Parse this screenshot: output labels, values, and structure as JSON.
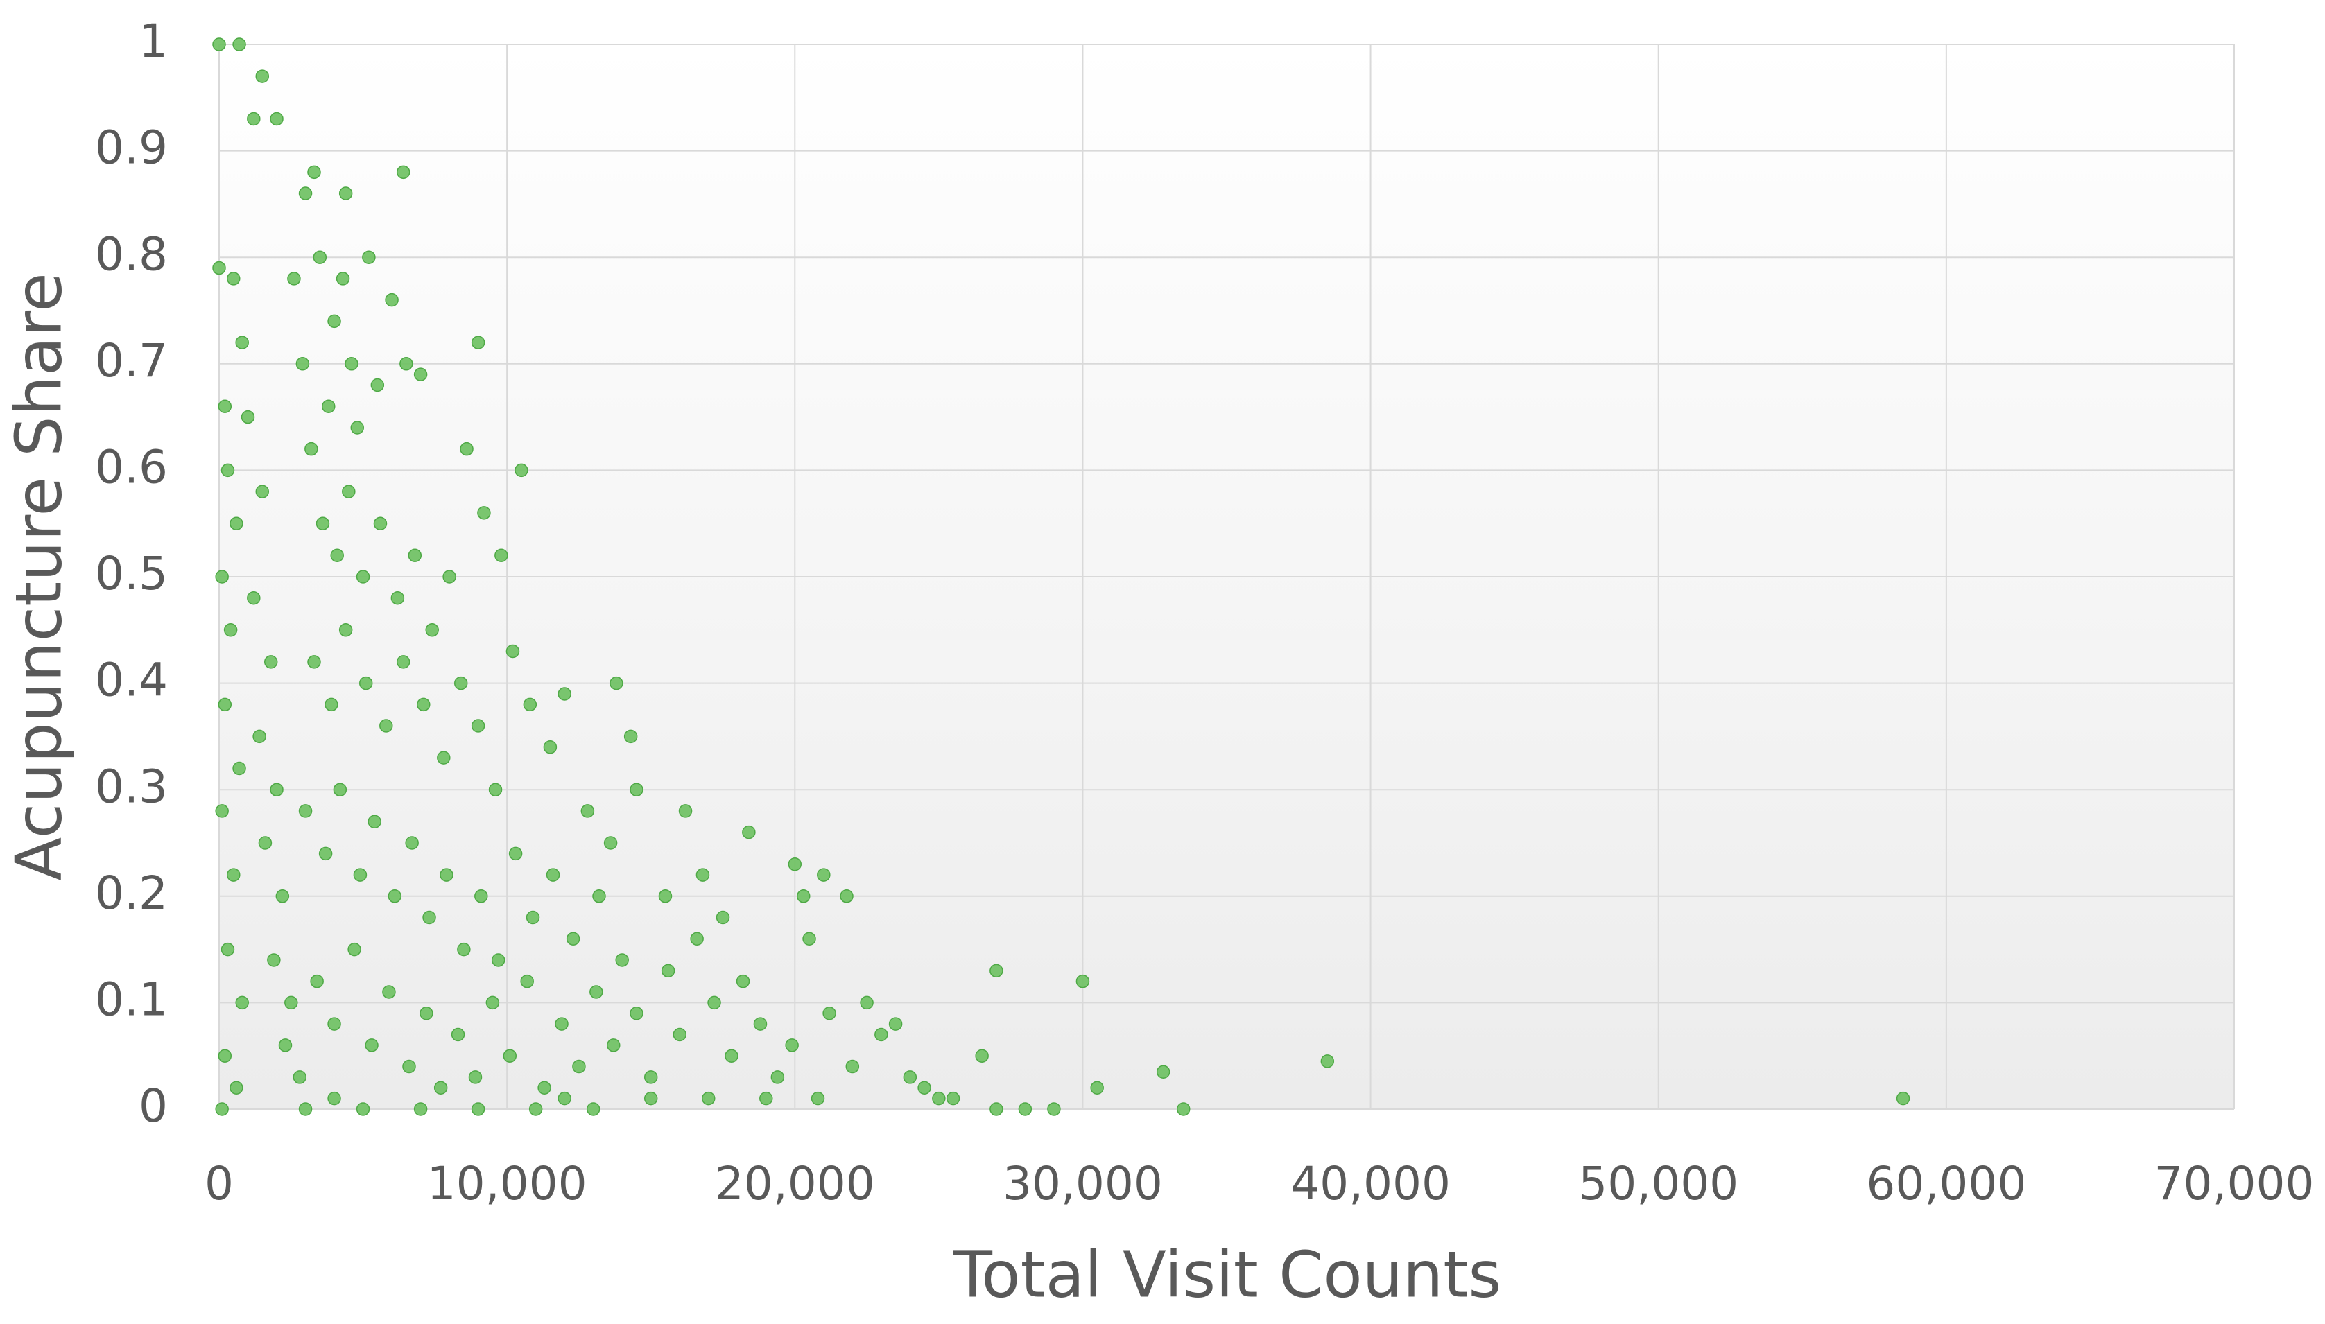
{
  "chart_data": {
    "type": "scatter",
    "x_label": "Total Visit Counts",
    "y_label": "Acupuncture Share",
    "color": "#6cc05f",
    "x": [
      0,
      700,
      1500,
      1200,
      2000,
      3300,
      6400,
      4400,
      3000,
      10500,
      9000,
      13800,
      14300,
      16200,
      18400,
      20000,
      21000,
      21800,
      20300,
      27000,
      30000,
      38500,
      58500,
      33500,
      32800,
      30500,
      27000,
      28000,
      29000,
      26500,
      23000,
      25000,
      0,
      200,
      500,
      800,
      300,
      600,
      100,
      400,
      200,
      700,
      100,
      500,
      300,
      800,
      200,
      600,
      100,
      1000,
      1500,
      1200,
      1800,
      1400,
      2000,
      1600,
      2200,
      1900,
      2500,
      2300,
      2800,
      3000,
      2600,
      2900,
      3500,
      3200,
      3800,
      4000,
      4300,
      4600,
      4800,
      5200,
      5500,
      6000,
      6500,
      7000,
      3600,
      4100,
      4500,
      5000,
      5600,
      6200,
      6800,
      7400,
      8000,
      8600,
      9200,
      9800,
      3300,
      3900,
      4400,
      5100,
      5800,
      6400,
      7100,
      7800,
      8400,
      9000,
      9600,
      10200,
      10800,
      11500,
      12000,
      3000,
      3700,
      4200,
      4900,
      5400,
      6100,
      6700,
      7300,
      7900,
      8500,
      9100,
      9700,
      10300,
      10900,
      11600,
      12300,
      12800,
      13200,
      13600,
      14000,
      3400,
      4000,
      4700,
      5300,
      5900,
      6600,
      7200,
      7700,
      8300,
      8900,
      9500,
      10100,
      10700,
      11300,
      11900,
      12500,
      13100,
      13700,
      14500,
      15000,
      15600,
      16000,
      16600,
      17200,
      17800,
      18200,
      18800,
      19400,
      19900,
      20500,
      21200,
      22000,
      22500,
      23500,
      24000,
      24500,
      25500,
      20800,
      19000,
      17000,
      15000,
      13000,
      11000,
      9000,
      7000,
      5000,
      4000,
      12000,
      14500,
      15500,
      17500,
      16800
    ],
    "values": [
      1,
      1,
      0.97,
      0.93,
      0.93,
      0.88,
      0.88,
      0.86,
      0.86,
      0.6,
      0.72,
      0.4,
      0.35,
      0.28,
      0.26,
      0.23,
      0.22,
      0.2,
      0.2,
      0.13,
      0.12,
      0.045,
      0.01,
      0,
      0.035,
      0.02,
      0,
      0,
      0,
      0.05,
      0.07,
      0.01,
      0.79,
      0.66,
      0.78,
      0.72,
      0.6,
      0.55,
      0.5,
      0.45,
      0.38,
      0.32,
      0.28,
      0.22,
      0.15,
      0.1,
      0.05,
      0.02,
      0,
      0.65,
      0.58,
      0.48,
      0.42,
      0.35,
      0.3,
      0.25,
      0.2,
      0.14,
      0.1,
      0.06,
      0.03,
      0,
      0.78,
      0.7,
      0.8,
      0.62,
      0.66,
      0.74,
      0.78,
      0.7,
      0.64,
      0.8,
      0.68,
      0.76,
      0.7,
      0.69,
      0.55,
      0.52,
      0.58,
      0.5,
      0.55,
      0.48,
      0.52,
      0.45,
      0.5,
      0.62,
      0.56,
      0.52,
      0.42,
      0.38,
      0.45,
      0.4,
      0.36,
      0.42,
      0.38,
      0.33,
      0.4,
      0.36,
      0.3,
      0.43,
      0.38,
      0.34,
      0.39,
      0.28,
      0.24,
      0.3,
      0.22,
      0.27,
      0.2,
      0.25,
      0.18,
      0.22,
      0.15,
      0.2,
      0.14,
      0.24,
      0.18,
      0.22,
      0.16,
      0.28,
      0.2,
      0.25,
      0.14,
      0.12,
      0.08,
      0.15,
      0.06,
      0.11,
      0.04,
      0.09,
      0.02,
      0.07,
      0.03,
      0.1,
      0.05,
      0.12,
      0.02,
      0.08,
      0.04,
      0.11,
      0.06,
      0.09,
      0.03,
      0.13,
      0.07,
      0.16,
      0.1,
      0.05,
      0.12,
      0.08,
      0.03,
      0.06,
      0.16,
      0.09,
      0.04,
      0.1,
      0.08,
      0.03,
      0.02,
      0.01,
      0.01,
      0.01,
      0.01,
      0.01,
      0,
      0,
      0,
      0,
      0,
      0.01,
      0.01,
      0.3,
      0.2,
      0.18,
      0.22
    ],
    "xlim": [
      0,
      70000
    ],
    "xticks": [
      0,
      {
        "value": 10000,
        "label": "10,000"
      },
      {
        "value": 20000,
        "label": "20,000"
      },
      {
        "value": 30000,
        "label": "30,000"
      },
      {
        "value": 40000,
        "label": "40,000"
      },
      {
        "value": 50000,
        "label": "50,000"
      },
      {
        "value": 60000,
        "label": "60,000"
      },
      {
        "value": 70000,
        "label": "70,000"
      }
    ],
    "ylim": [
      0,
      1
    ],
    "yticks": [
      0,
      0.1,
      0.2,
      0.3,
      0.4,
      0.5,
      0.6,
      0.7,
      0.8,
      0.9,
      1
    ],
    "grid": true
  }
}
